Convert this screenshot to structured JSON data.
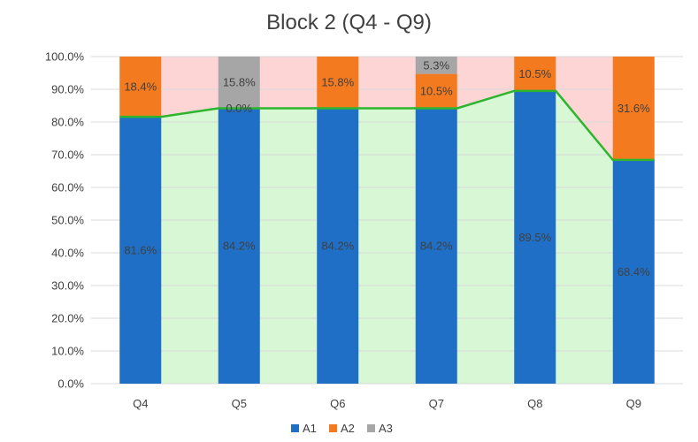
{
  "chart_data": {
    "type": "bar",
    "stacked": true,
    "title": "Block 2 (Q4 - Q9)",
    "categories": [
      "Q4",
      "Q5",
      "Q6",
      "Q7",
      "Q8",
      "Q9"
    ],
    "series": [
      {
        "name": "A1",
        "color": "#1f6fc6",
        "values": [
          81.6,
          84.2,
          84.2,
          84.2,
          89.5,
          68.4
        ],
        "labels": [
          "81.6%",
          "84.2%",
          "84.2%",
          "84.2%",
          "89.5%",
          "68.4%"
        ]
      },
      {
        "name": "A2",
        "color": "#f47a1f",
        "values": [
          18.4,
          0.0,
          15.8,
          10.5,
          10.5,
          31.6
        ],
        "labels": [
          "18.4%",
          "0.0%",
          "15.8%",
          "10.5%",
          "10.5%",
          "31.6%"
        ]
      },
      {
        "name": "A3",
        "color": "#a6a6a6",
        "values": [
          0,
          15.8,
          0,
          5.3,
          0,
          0
        ],
        "labels": [
          "",
          "15.8%",
          "",
          "5.3%",
          "",
          ""
        ]
      }
    ],
    "ylim": [
      0,
      100
    ],
    "yticks": [
      "0.0%",
      "10.0%",
      "20.0%",
      "30.0%",
      "40.0%",
      "50.0%",
      "60.0%",
      "70.0%",
      "80.0%",
      "90.0%",
      "100.0%"
    ],
    "background_area": {
      "below_color": "#d7f7d5",
      "above_color": "#fdd5d5",
      "line_color": "#2db52d"
    },
    "legend_position": "bottom",
    "grid": true
  }
}
